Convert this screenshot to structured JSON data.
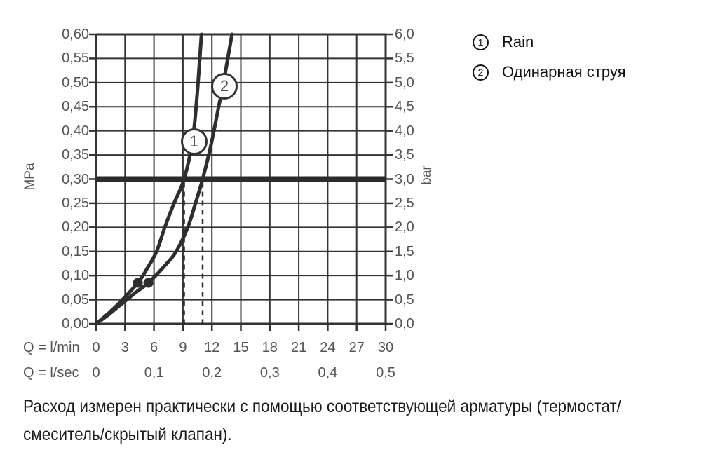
{
  "legend": {
    "items": [
      {
        "num": "1",
        "label": "Rain"
      },
      {
        "num": "2",
        "label": "Одинарная струя"
      }
    ]
  },
  "note": {
    "line1": "Расход измерен практически с помощью соответствующей арматуры (термостат/",
    "line2": "смеситель/скрытый клапан)."
  },
  "chart_data": {
    "type": "line",
    "title": "",
    "grid": true,
    "x_axis": {
      "label_primary": "Q = l/min",
      "label_secondary": "Q = l/sec",
      "range_lmin": [
        0,
        30
      ],
      "ticks_lmin": [
        "0",
        "3",
        "6",
        "9",
        "12",
        "15",
        "18",
        "21",
        "24",
        "27",
        "30"
      ],
      "ticks_lsec": [
        {
          "q": 0,
          "label": "0"
        },
        {
          "q": 6,
          "label": "0,1"
        },
        {
          "q": 12,
          "label": "0,2"
        },
        {
          "q": 18,
          "label": "0,3"
        },
        {
          "q": 24,
          "label": "0,4"
        },
        {
          "q": 30,
          "label": "0,5"
        }
      ]
    },
    "y_axis_left": {
      "label": "MPa",
      "range_mpa": [
        0,
        0.6
      ],
      "ticks": [
        "0,60",
        "0,55",
        "0,50",
        "0,45",
        "0,40",
        "0,35",
        "0,30",
        "0,25",
        "0,20",
        "0,15",
        "0,10",
        "0,05",
        "0,00"
      ]
    },
    "y_axis_right": {
      "label": "bar",
      "range_bar": [
        0,
        6
      ],
      "ticks": [
        "6,0",
        "5,5",
        "5,0",
        "4,5",
        "4,0",
        "3,5",
        "3,0",
        "2,5",
        "2,0",
        "1,5",
        "1,0",
        "0,5",
        "0,0"
      ]
    },
    "reference_line_mpa": 0.3,
    "drop_lines_lmin": [
      9.12,
      11.04
    ],
    "series": [
      {
        "id": "1",
        "name": "Rain",
        "points_lmin_mpa": [
          [
            0,
            0
          ],
          [
            1.3,
            0.022
          ],
          [
            2.5,
            0.045
          ],
          [
            4.33,
            0.085
          ],
          [
            5.3,
            0.115
          ],
          [
            6.27,
            0.15
          ],
          [
            7.12,
            0.2
          ],
          [
            8.08,
            0.25
          ],
          [
            9.12,
            0.3
          ],
          [
            9.98,
            0.378
          ],
          [
            10.45,
            0.47
          ],
          [
            10.92,
            0.6
          ]
        ],
        "marker_lmin_mpa": [
          4.33,
          0.085
        ],
        "badge_lmin_mpa": [
          10.14,
          0.378
        ]
      },
      {
        "id": "2",
        "name": "Одинарная струя",
        "points_lmin_mpa": [
          [
            0,
            0
          ],
          [
            1.35,
            0.02
          ],
          [
            2.7,
            0.042
          ],
          [
            4.1,
            0.065
          ],
          [
            5.42,
            0.085
          ],
          [
            7.1,
            0.12
          ],
          [
            8.3,
            0.15
          ],
          [
            9.5,
            0.2
          ],
          [
            10.3,
            0.25
          ],
          [
            11.04,
            0.3
          ],
          [
            11.9,
            0.37
          ],
          [
            12.7,
            0.45
          ],
          [
            13.14,
            0.4925
          ],
          [
            14.08,
            0.6
          ]
        ],
        "marker_lmin_mpa": [
          5.42,
          0.085
        ],
        "badge_lmin_mpa": [
          13.29,
          0.4925
        ]
      }
    ]
  }
}
